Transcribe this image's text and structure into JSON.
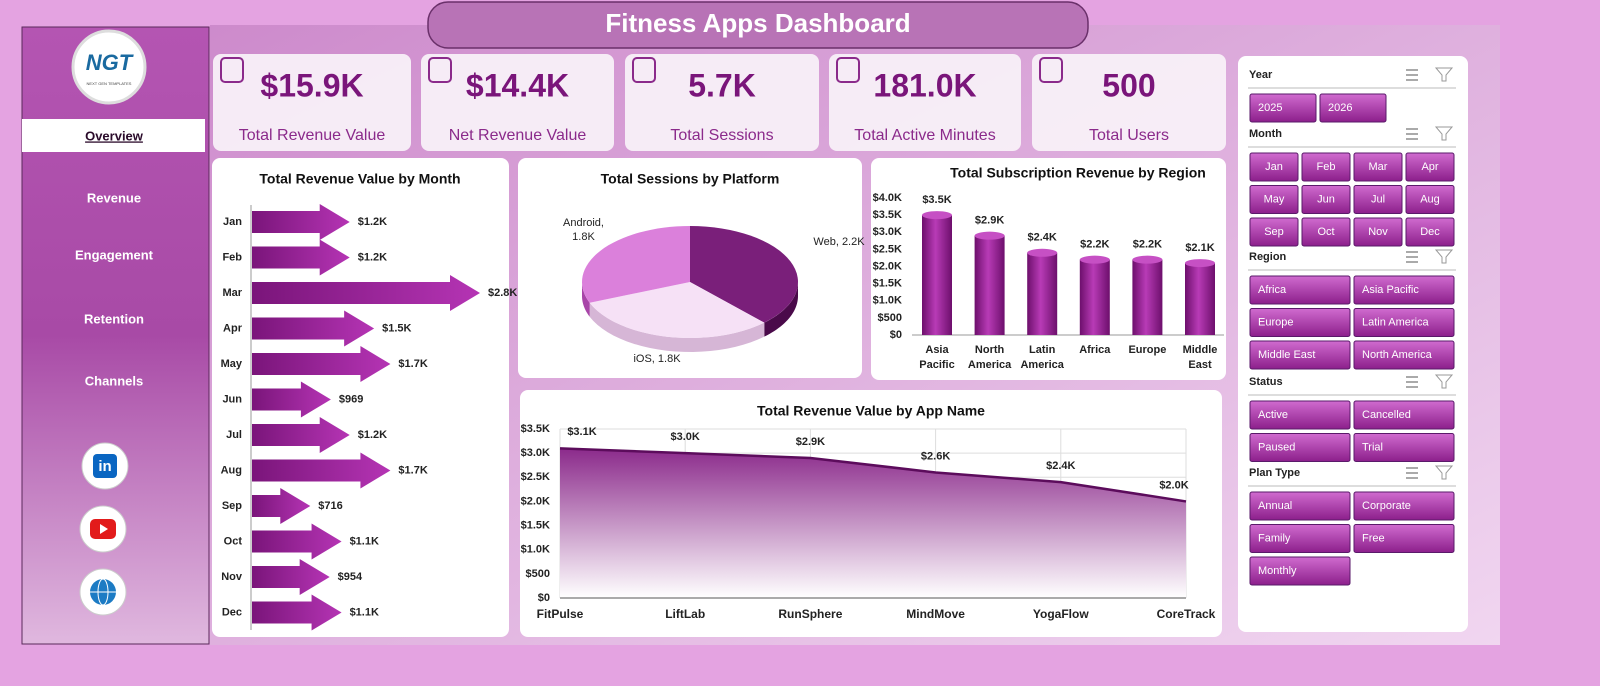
{
  "title": "Fitness Apps Dashboard",
  "logo": {
    "text": "NGT",
    "subtitle": "NEXT GEN TEMPLATES"
  },
  "nav": [
    "Overview",
    "Revenue",
    "Engagement",
    "Retention",
    "Channels"
  ],
  "linkedin_icon": "in",
  "kpis": [
    {
      "value": "$15.9K",
      "label": "Total Revenue Value"
    },
    {
      "value": "$14.4K",
      "label": "Net Revenue Value"
    },
    {
      "value": "5.7K",
      "label": "Total Sessions"
    },
    {
      "value": "181.0K",
      "label": "Total Active Minutes"
    },
    {
      "value": "500",
      "label": "Total Users"
    }
  ],
  "chart_data": [
    {
      "type": "bar",
      "horizontal": true,
      "title": "Total Revenue Value by Month",
      "color": "#8b1a8b",
      "categories": [
        "Jan",
        "Feb",
        "Mar",
        "Apr",
        "May",
        "Jun",
        "Jul",
        "Aug",
        "Sep",
        "Oct",
        "Nov",
        "Dec"
      ],
      "values": [
        1200,
        1200,
        2800,
        1500,
        1700,
        969,
        1200,
        1700,
        716,
        1100,
        954,
        1100
      ],
      "value_labels": [
        "$1.2K",
        "$1.2K",
        "$2.8K",
        "$1.5K",
        "$1.7K",
        "$969",
        "$1.2K",
        "$1.7K",
        "$716",
        "$1.1K",
        "$954",
        "$1.1K"
      ]
    },
    {
      "type": "pie",
      "title": "Total Sessions by Platform",
      "values": [
        2200,
        1800,
        1800
      ],
      "value_labels": [
        "Web, 2.2K",
        "iOS, 1.8K",
        "Android, 1.8K"
      ],
      "colors": [
        "#7a1f7a",
        "#f6e1f6",
        "#db80db"
      ]
    },
    {
      "type": "bar",
      "title": "Total Subscription Revenue by Region",
      "color": "#9a1f98",
      "categories": [
        "Asia Pacific",
        "North America",
        "Latin America",
        "Africa",
        "Europe",
        "Middle East"
      ],
      "values": [
        3500,
        2900,
        2400,
        2200,
        2200,
        2100
      ],
      "value_labels": [
        "$3.5K",
        "$2.9K",
        "$2.4K",
        "$2.2K",
        "$2.2K",
        "$2.1K"
      ],
      "ylim": [
        0,
        4000
      ],
      "yticks": [
        {
          "value": 0,
          "label": "$0"
        },
        {
          "value": 500,
          "label": "$500"
        },
        {
          "value": 1000,
          "label": "$1.0K"
        },
        {
          "value": 1500,
          "label": "$1.5K"
        },
        {
          "value": 2000,
          "label": "$2.0K"
        },
        {
          "value": 2500,
          "label": "$2.5K"
        },
        {
          "value": 3000,
          "label": "$3.0K"
        },
        {
          "value": 3500,
          "label": "$3.5K"
        },
        {
          "value": 4000,
          "label": "$4.0K"
        }
      ]
    },
    {
      "type": "area",
      "title": "Total Revenue Value by App Name",
      "color": "#5c0c5c",
      "grid": true,
      "categories": [
        "FitPulse",
        "LiftLab",
        "RunSphere",
        "MindMove",
        "YogaFlow",
        "CoreTrack"
      ],
      "values": [
        3100,
        3000,
        2900,
        2600,
        2400,
        2000
      ],
      "value_labels": [
        "$3.1K",
        "$3.0K",
        "$2.9K",
        "$2.6K",
        "$2.4K",
        "$2.0K"
      ],
      "ylim": [
        0,
        3500
      ],
      "yticks": [
        {
          "value": 0,
          "label": "$0"
        },
        {
          "value": 500,
          "label": "$500"
        },
        {
          "value": 1000,
          "label": "$1.0K"
        },
        {
          "value": 1500,
          "label": "$1.5K"
        },
        {
          "value": 2000,
          "label": "$2.0K"
        },
        {
          "value": 2500,
          "label": "$2.5K"
        },
        {
          "value": 3000,
          "label": "$3.0K"
        },
        {
          "value": 3500,
          "label": "$3.5K"
        }
      ]
    }
  ],
  "slicers": [
    {
      "title": "Year",
      "items": [
        "2025",
        "2026"
      ]
    },
    {
      "title": "Month",
      "items": [
        "Jan",
        "Feb",
        "Mar",
        "Apr",
        "May",
        "Jun",
        "Jul",
        "Aug",
        "Sep",
        "Oct",
        "Nov",
        "Dec"
      ]
    },
    {
      "title": "Region",
      "items": [
        "Africa",
        "Asia Pacific",
        "Europe",
        "Latin America",
        "Middle East",
        "North America"
      ]
    },
    {
      "title": "Status",
      "items": [
        "Active",
        "Cancelled",
        "Paused",
        "Trial"
      ]
    },
    {
      "title": "Plan Type",
      "items": [
        "Annual",
        "Corporate",
        "Family",
        "Free",
        "Monthly"
      ]
    }
  ]
}
